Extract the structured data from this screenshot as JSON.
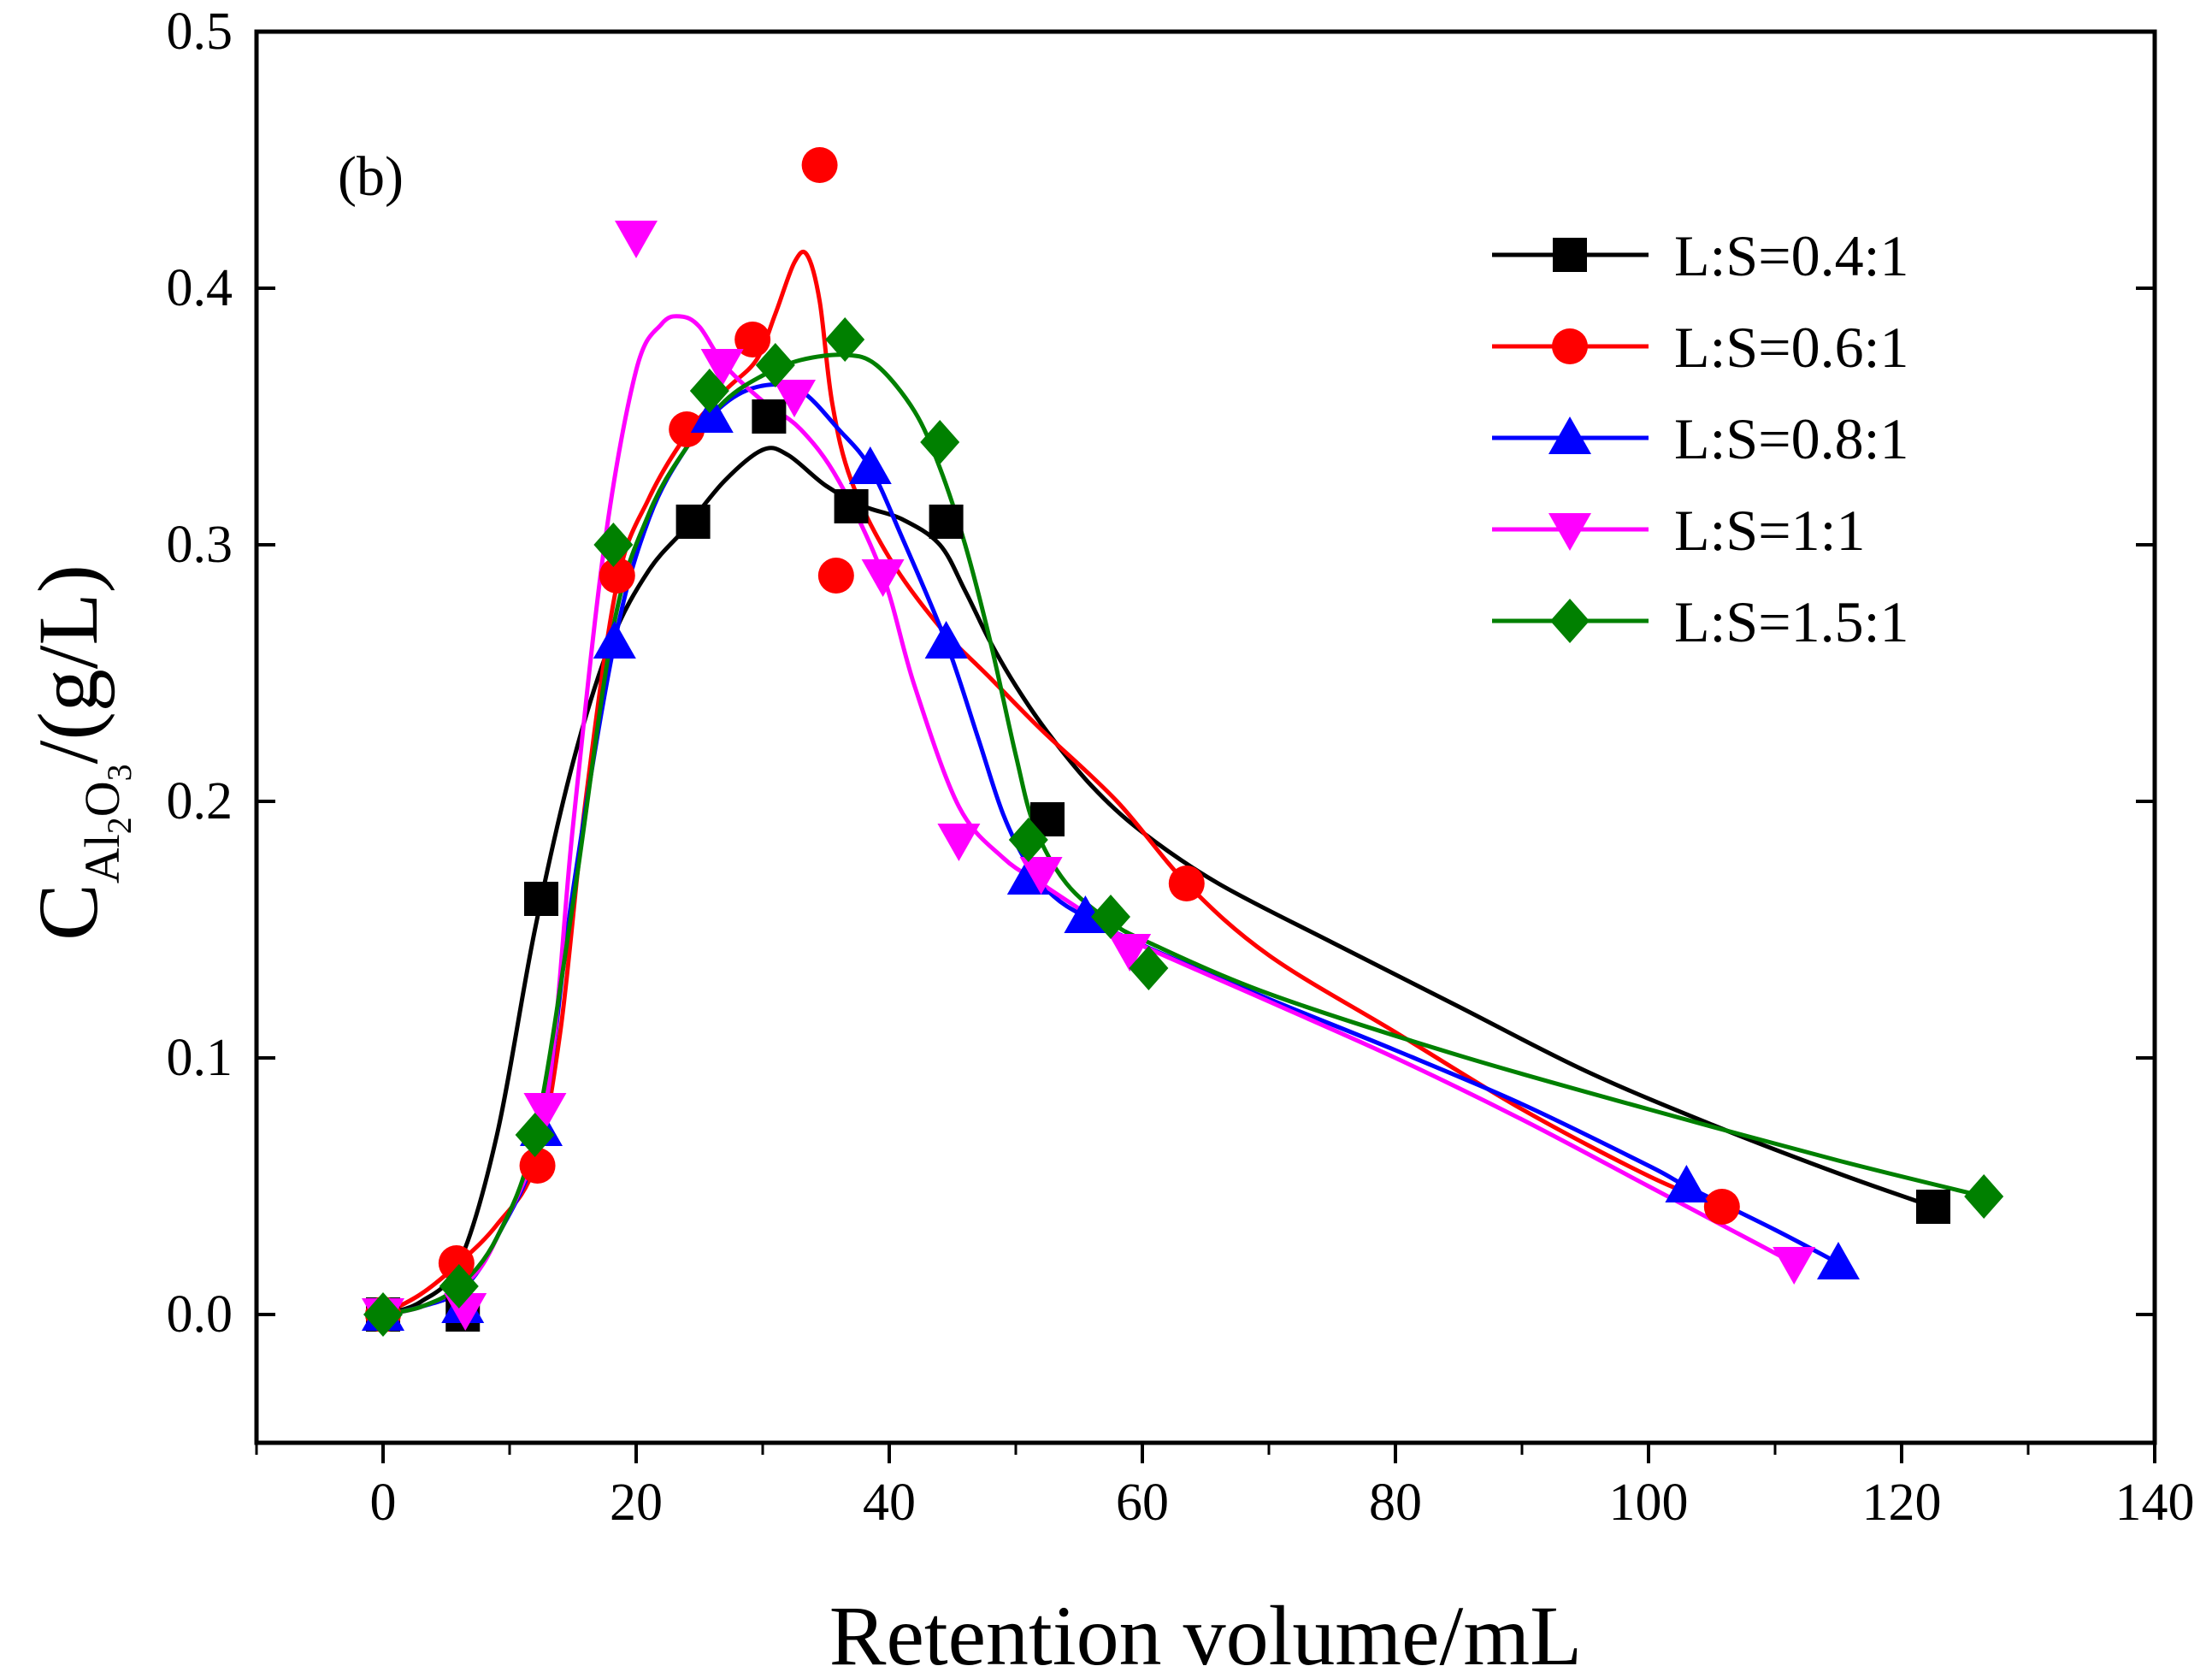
{
  "chart_data": {
    "type": "line",
    "panel_label": "(b)",
    "xlabel": "Retention volume/mL",
    "ylabel": {
      "main": "C",
      "sub_a": "Al",
      "sub_b": "2",
      "sub_c": "O",
      "sub_d": "3",
      "unit": "/(g/L)"
    },
    "xlim": [
      -10,
      140
    ],
    "ylim": [
      -0.05,
      0.5
    ],
    "xticks": [
      0,
      20,
      40,
      60,
      80,
      100,
      120,
      140
    ],
    "yticks": [
      0.0,
      0.1,
      0.2,
      0.3,
      0.4,
      0.5
    ],
    "xtick_labels": [
      "0",
      "20",
      "40",
      "60",
      "80",
      "100",
      "120",
      "140"
    ],
    "ytick_labels": [
      "0.0",
      "0.1",
      "0.2",
      "0.3",
      "0.4",
      "0.5"
    ],
    "legend_position": "top-right",
    "series": [
      {
        "name": "L:S=0.4:1",
        "color": "#000000",
        "marker": "square",
        "points": [
          [
            0,
            0.0
          ],
          [
            6.3,
            0.0
          ],
          [
            12.5,
            0.162
          ],
          [
            24.5,
            0.309
          ],
          [
            30.5,
            0.35
          ],
          [
            37,
            0.315
          ],
          [
            44.5,
            0.309
          ],
          [
            52.5,
            0.193
          ],
          [
            122.5,
            0.042
          ]
        ],
        "curve": [
          [
            0,
            0.0
          ],
          [
            3,
            0.005
          ],
          [
            6,
            0.02
          ],
          [
            9,
            0.07
          ],
          [
            12,
            0.15
          ],
          [
            15,
            0.215
          ],
          [
            18,
            0.262
          ],
          [
            21,
            0.29
          ],
          [
            24,
            0.307
          ],
          [
            27,
            0.325
          ],
          [
            30,
            0.337
          ],
          [
            32,
            0.335
          ],
          [
            35,
            0.323
          ],
          [
            38,
            0.315
          ],
          [
            41,
            0.31
          ],
          [
            44,
            0.3
          ],
          [
            46,
            0.282
          ],
          [
            48,
            0.262
          ],
          [
            50,
            0.245
          ],
          [
            52.5,
            0.227
          ],
          [
            56,
            0.206
          ],
          [
            60,
            0.188
          ],
          [
            66,
            0.168
          ],
          [
            75,
            0.145
          ],
          [
            85,
            0.12
          ],
          [
            95,
            0.095
          ],
          [
            105,
            0.074
          ],
          [
            115,
            0.055
          ],
          [
            122.5,
            0.042
          ]
        ]
      },
      {
        "name": "L:S=0.6:1",
        "color": "#ff0000",
        "marker": "circle",
        "points": [
          [
            0,
            0.0
          ],
          [
            5.8,
            0.02
          ],
          [
            12.2,
            0.058
          ],
          [
            18.5,
            0.288
          ],
          [
            24,
            0.345
          ],
          [
            29.2,
            0.38
          ],
          [
            34.5,
            0.448
          ],
          [
            35.8,
            0.288
          ],
          [
            63.5,
            0.168
          ],
          [
            105.8,
            0.042
          ]
        ],
        "curve": [
          [
            0,
            0.0
          ],
          [
            3,
            0.008
          ],
          [
            6,
            0.02
          ],
          [
            9,
            0.035
          ],
          [
            12,
            0.058
          ],
          [
            14,
            0.11
          ],
          [
            16,
            0.2
          ],
          [
            18.5,
            0.285
          ],
          [
            21,
            0.318
          ],
          [
            24,
            0.343
          ],
          [
            27,
            0.36
          ],
          [
            29.5,
            0.372
          ],
          [
            31,
            0.39
          ],
          [
            32.5,
            0.41
          ],
          [
            33.5,
            0.413
          ],
          [
            34.5,
            0.395
          ],
          [
            35.5,
            0.355
          ],
          [
            37,
            0.325
          ],
          [
            40,
            0.295
          ],
          [
            44,
            0.268
          ],
          [
            48,
            0.248
          ],
          [
            52,
            0.228
          ],
          [
            58,
            0.2
          ],
          [
            63.5,
            0.168
          ],
          [
            70,
            0.14
          ],
          [
            80,
            0.11
          ],
          [
            90,
            0.08
          ],
          [
            100,
            0.054
          ],
          [
            105.8,
            0.042
          ]
        ]
      },
      {
        "name": "L:S=0.8:1",
        "color": "#0000ff",
        "marker": "triangle-up",
        "points": [
          [
            0,
            0.0
          ],
          [
            6.3,
            0.003
          ],
          [
            12.5,
            0.072
          ],
          [
            18.3,
            0.262
          ],
          [
            26,
            0.35
          ],
          [
            38.5,
            0.33
          ],
          [
            44.5,
            0.262
          ],
          [
            51,
            0.17
          ],
          [
            55.5,
            0.155
          ],
          [
            103,
            0.05
          ],
          [
            115,
            0.02
          ]
        ],
        "curve": [
          [
            0,
            0.0
          ],
          [
            3,
            0.003
          ],
          [
            6.3,
            0.01
          ],
          [
            9,
            0.03
          ],
          [
            12.5,
            0.072
          ],
          [
            15,
            0.165
          ],
          [
            18.3,
            0.262
          ],
          [
            21,
            0.31
          ],
          [
            24,
            0.338
          ],
          [
            27,
            0.355
          ],
          [
            30,
            0.362
          ],
          [
            33,
            0.36
          ],
          [
            36,
            0.345
          ],
          [
            38.5,
            0.33
          ],
          [
            41,
            0.303
          ],
          [
            44.5,
            0.262
          ],
          [
            47,
            0.225
          ],
          [
            49,
            0.195
          ],
          [
            51,
            0.175
          ],
          [
            53,
            0.163
          ],
          [
            55.5,
            0.155
          ],
          [
            60,
            0.144
          ],
          [
            70,
            0.123
          ],
          [
            80,
            0.103
          ],
          [
            90,
            0.082
          ],
          [
            100,
            0.058
          ],
          [
            103,
            0.05
          ],
          [
            110,
            0.033
          ],
          [
            115,
            0.02
          ]
        ]
      },
      {
        "name": "L:S=1:1",
        "color": "#ff00ff",
        "marker": "triangle-down",
        "points": [
          [
            0,
            0.0
          ],
          [
            6.5,
            0.002
          ],
          [
            12.8,
            0.08
          ],
          [
            20,
            0.42
          ],
          [
            26.8,
            0.37
          ],
          [
            32.5,
            0.358
          ],
          [
            39.5,
            0.288
          ],
          [
            45.5,
            0.185
          ],
          [
            52,
            0.172
          ],
          [
            59,
            0.142
          ],
          [
            111.5,
            0.02
          ]
        ],
        "curve": [
          [
            0,
            0.0
          ],
          [
            3,
            0.003
          ],
          [
            6.5,
            0.012
          ],
          [
            9,
            0.03
          ],
          [
            12.8,
            0.08
          ],
          [
            15,
            0.19
          ],
          [
            17.5,
            0.3
          ],
          [
            20,
            0.368
          ],
          [
            22,
            0.386
          ],
          [
            23.5,
            0.389
          ],
          [
            25,
            0.385
          ],
          [
            27,
            0.37
          ],
          [
            30,
            0.356
          ],
          [
            33,
            0.345
          ],
          [
            36,
            0.325
          ],
          [
            39.5,
            0.288
          ],
          [
            42,
            0.245
          ],
          [
            45.5,
            0.198
          ],
          [
            49,
            0.178
          ],
          [
            52,
            0.168
          ],
          [
            56,
            0.155
          ],
          [
            59,
            0.146
          ],
          [
            70,
            0.122
          ],
          [
            80,
            0.1
          ],
          [
            90,
            0.076
          ],
          [
            100,
            0.05
          ],
          [
            111.5,
            0.02
          ]
        ]
      },
      {
        "name": "L:S=1.5:1",
        "color": "#008000",
        "marker": "diamond",
        "points": [
          [
            0,
            0.0
          ],
          [
            6,
            0.011
          ],
          [
            12,
            0.07
          ],
          [
            18.2,
            0.3
          ],
          [
            25.8,
            0.36
          ],
          [
            31,
            0.37
          ],
          [
            36.5,
            0.38
          ],
          [
            44,
            0.34
          ],
          [
            51,
            0.185
          ],
          [
            57.5,
            0.155
          ],
          [
            60.5,
            0.135
          ],
          [
            126.5,
            0.046
          ]
        ],
        "curve": [
          [
            0,
            0.0
          ],
          [
            3,
            0.003
          ],
          [
            6,
            0.011
          ],
          [
            9,
            0.03
          ],
          [
            12,
            0.07
          ],
          [
            15,
            0.16
          ],
          [
            18.2,
            0.268
          ],
          [
            21,
            0.312
          ],
          [
            24,
            0.338
          ],
          [
            27,
            0.356
          ],
          [
            30,
            0.366
          ],
          [
            33,
            0.372
          ],
          [
            36.5,
            0.374
          ],
          [
            39,
            0.37
          ],
          [
            42,
            0.352
          ],
          [
            44,
            0.33
          ],
          [
            46,
            0.3
          ],
          [
            48,
            0.262
          ],
          [
            50,
            0.218
          ],
          [
            51.5,
            0.19
          ],
          [
            54,
            0.168
          ],
          [
            57.5,
            0.153
          ],
          [
            60.5,
            0.145
          ],
          [
            70,
            0.125
          ],
          [
            85,
            0.101
          ],
          [
            100,
            0.08
          ],
          [
            115,
            0.06
          ],
          [
            126.5,
            0.046
          ]
        ]
      }
    ]
  }
}
